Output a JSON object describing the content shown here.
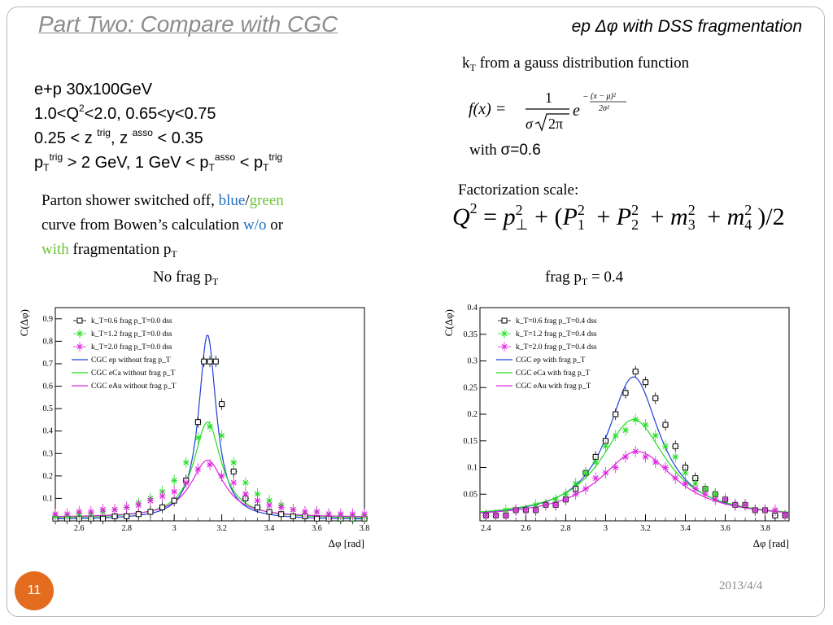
{
  "slide": {
    "title": "Part Two: Compare with CGC",
    "subtitle_pre": "ep ",
    "subtitle_sym": "Δφ",
    "subtitle_post": " with DSS fragmentation",
    "page_number": "11",
    "date": "2013/4/4"
  },
  "params": {
    "line1": "e+p 30x100GeV",
    "line2_a": "1.0<Q",
    "line2_sup": "2",
    "line2_b": "<2.0,  0.65<y<0.75",
    "line3_a": "0.25 < z ",
    "line3_sup1": "trig",
    "line3_b": ", z ",
    "line3_sup2": "asso",
    "line3_c": " < 0.35",
    "line4_p1": "p",
    "line4_sub1": "T",
    "line4_sup1": "trig",
    "line4_b": " > 2 GeV, 1 GeV < p",
    "line4_sub2": "T",
    "line4_sup2": "asso",
    "line4_c": " < p",
    "line4_sub3": "T",
    "line4_sup3": "trig"
  },
  "note": {
    "p1": "Parton shower switched off, ",
    "blue": "blue",
    "slash": "/",
    "green": "green",
    "p2": "curve from Bowen’s calculation ",
    "wo": "w/o",
    "or": "  or",
    "with": "with",
    "p3": " fragmentation p",
    "sub": "T"
  },
  "kt_note": {
    "pre": "k",
    "sub": "T",
    "post": " from a gauss distribution function"
  },
  "sigma_note": {
    "with": "with ",
    "value": "σ=0.6"
  },
  "factorization": {
    "label": "Factorization scale:"
  },
  "captions": {
    "left_pre": "No frag p",
    "left_sub": "T",
    "right_pre": "frag p",
    "right_sub": "T",
    "right_post": " = 0.4"
  },
  "colors": {
    "title_gray": "#8c8c8c",
    "blue": "#1f6fbf",
    "green": "#6ec33b",
    "pagenum_orange": "#e36c1e",
    "series_ep": "#1f3fd6",
    "series_eca": "#22dd22",
    "series_eau": "#e020e0"
  },
  "chart_data": [
    {
      "type": "line",
      "ylabel": "C(Δφ)",
      "xlabel": "Δφ [rad]",
      "xlim": [
        2.5,
        3.8
      ],
      "ylim": [
        0,
        0.95
      ],
      "xticks": [
        "2.6",
        "2.8",
        "3",
        "3.2",
        "3.4",
        "3.6",
        "3.8"
      ],
      "yticks": [
        "0.1",
        "0.2",
        "0.3",
        "0.4",
        "0.5",
        "0.6",
        "0.7",
        "0.8",
        "0.9"
      ],
      "legend_position": "top-left",
      "markers": [
        {
          "name": "k_T=0.6 frag p_T=0.0 dss",
          "marker": "square",
          "color": "#000000",
          "x": [
            2.5,
            2.55,
            2.6,
            2.65,
            2.7,
            2.75,
            2.8,
            2.85,
            2.9,
            2.95,
            3.0,
            3.05,
            3.1,
            3.125,
            3.15,
            3.175,
            3.2,
            3.25,
            3.3,
            3.35,
            3.4,
            3.45,
            3.5,
            3.55,
            3.6,
            3.65,
            3.7,
            3.75,
            3.8
          ],
          "y": [
            0.01,
            0.01,
            0.01,
            0.01,
            0.01,
            0.02,
            0.02,
            0.03,
            0.04,
            0.06,
            0.09,
            0.18,
            0.44,
            0.71,
            0.71,
            0.71,
            0.52,
            0.22,
            0.1,
            0.06,
            0.04,
            0.03,
            0.02,
            0.02,
            0.01,
            0.01,
            0.01,
            0.01,
            0.01
          ]
        },
        {
          "name": "k_T=1.2 frag p_T=0.0 dss",
          "marker": "cross",
          "color": "#22dd22",
          "x": [
            2.5,
            2.55,
            2.6,
            2.65,
            2.7,
            2.75,
            2.8,
            2.85,
            2.9,
            2.95,
            3.0,
            3.05,
            3.1,
            3.15,
            3.2,
            3.25,
            3.3,
            3.35,
            3.4,
            3.45,
            3.5,
            3.55,
            3.6,
            3.65,
            3.7,
            3.75,
            3.8
          ],
          "y": [
            0.02,
            0.02,
            0.03,
            0.03,
            0.04,
            0.05,
            0.06,
            0.08,
            0.1,
            0.13,
            0.18,
            0.26,
            0.37,
            0.42,
            0.38,
            0.26,
            0.17,
            0.12,
            0.09,
            0.07,
            0.05,
            0.04,
            0.04,
            0.03,
            0.02,
            0.02,
            0.02
          ]
        },
        {
          "name": "k_T=2.0 frag p_T=0.0 dss",
          "marker": "cross",
          "color": "#e020e0",
          "x": [
            2.5,
            2.55,
            2.6,
            2.65,
            2.7,
            2.75,
            2.8,
            2.85,
            2.9,
            2.95,
            3.0,
            3.05,
            3.1,
            3.15,
            3.2,
            3.25,
            3.3,
            3.35,
            3.4,
            3.45,
            3.5,
            3.55,
            3.6,
            3.65,
            3.7,
            3.75,
            3.8
          ],
          "y": [
            0.03,
            0.03,
            0.04,
            0.04,
            0.05,
            0.05,
            0.06,
            0.07,
            0.09,
            0.11,
            0.13,
            0.17,
            0.23,
            0.25,
            0.2,
            0.17,
            0.12,
            0.09,
            0.07,
            0.06,
            0.05,
            0.04,
            0.04,
            0.03,
            0.03,
            0.03,
            0.03
          ]
        }
      ],
      "series": [
        {
          "name": "CGC ep without frag p_T",
          "color": "#1f3fd6",
          "peak": 0.83,
          "center": 3.14,
          "width": 0.045,
          "base": 0.005
        },
        {
          "name": "CGC eCa without frag p_T",
          "color": "#22dd22",
          "peak": 0.44,
          "center": 3.14,
          "width": 0.07,
          "base": 0.01
        },
        {
          "name": "CGC eAu without frag p_T",
          "color": "#e020e0",
          "peak": 0.27,
          "center": 3.14,
          "width": 0.085,
          "base": 0.015
        }
      ]
    },
    {
      "type": "line",
      "ylabel": "C(Δφ)",
      "xlabel": "Δφ [rad]",
      "xlim": [
        2.37,
        3.92
      ],
      "ylim": [
        0,
        0.4
      ],
      "xticks": [
        "2.4",
        "2.6",
        "2.8",
        "3",
        "3.2",
        "3.4",
        "3.6",
        "3.8"
      ],
      "yticks": [
        "0.05",
        "0.1",
        "0.15",
        "0.2",
        "0.25",
        "0.3",
        "0.35",
        "0.4"
      ],
      "legend_position": "top-left",
      "markers": [
        {
          "name": "k_T=0.6 frag p_T=0.4 dss",
          "marker": "square",
          "color": "#000000",
          "x": [
            2.4,
            2.45,
            2.5,
            2.55,
            2.6,
            2.65,
            2.7,
            2.75,
            2.8,
            2.85,
            2.9,
            2.95,
            3.0,
            3.05,
            3.1,
            3.15,
            3.2,
            3.25,
            3.3,
            3.35,
            3.4,
            3.45,
            3.5,
            3.55,
            3.6,
            3.65,
            3.7,
            3.75,
            3.8,
            3.85,
            3.9
          ],
          "y": [
            0.01,
            0.01,
            0.01,
            0.02,
            0.02,
            0.02,
            0.03,
            0.03,
            0.04,
            0.06,
            0.09,
            0.12,
            0.15,
            0.2,
            0.24,
            0.28,
            0.26,
            0.23,
            0.18,
            0.14,
            0.1,
            0.08,
            0.06,
            0.05,
            0.04,
            0.03,
            0.03,
            0.02,
            0.02,
            0.01,
            0.01
          ]
        },
        {
          "name": "k_T=1.2 frag p_T=0.4 dss",
          "marker": "cross",
          "color": "#22dd22",
          "x": [
            2.4,
            2.45,
            2.5,
            2.55,
            2.6,
            2.65,
            2.7,
            2.75,
            2.8,
            2.85,
            2.9,
            2.95,
            3.0,
            3.05,
            3.1,
            3.15,
            3.2,
            3.25,
            3.3,
            3.35,
            3.4,
            3.45,
            3.5,
            3.55,
            3.6,
            3.65,
            3.7,
            3.75,
            3.8,
            3.85,
            3.9
          ],
          "y": [
            0.01,
            0.01,
            0.02,
            0.02,
            0.02,
            0.03,
            0.03,
            0.04,
            0.05,
            0.07,
            0.09,
            0.11,
            0.14,
            0.16,
            0.17,
            0.19,
            0.18,
            0.16,
            0.14,
            0.12,
            0.09,
            0.07,
            0.06,
            0.05,
            0.04,
            0.03,
            0.03,
            0.02,
            0.02,
            0.02,
            0.01
          ]
        },
        {
          "name": "k_T=2.0 frag p_T=0.4 dss",
          "marker": "cross",
          "color": "#e020e0",
          "x": [
            2.4,
            2.45,
            2.5,
            2.55,
            2.6,
            2.65,
            2.7,
            2.75,
            2.8,
            2.85,
            2.9,
            2.95,
            3.0,
            3.05,
            3.1,
            3.15,
            3.2,
            3.25,
            3.3,
            3.35,
            3.4,
            3.45,
            3.5,
            3.55,
            3.6,
            3.65,
            3.7,
            3.75,
            3.8,
            3.85,
            3.9
          ],
          "y": [
            0.01,
            0.01,
            0.01,
            0.02,
            0.02,
            0.02,
            0.03,
            0.03,
            0.04,
            0.05,
            0.06,
            0.08,
            0.09,
            0.1,
            0.12,
            0.13,
            0.12,
            0.11,
            0.1,
            0.08,
            0.07,
            0.06,
            0.05,
            0.04,
            0.04,
            0.03,
            0.03,
            0.02,
            0.02,
            0.02,
            0.01
          ]
        }
      ],
      "series": [
        {
          "name": "CGC ep with frag p_T",
          "color": "#1f3fd6",
          "peak": 0.27,
          "center": 3.14,
          "width": 0.16,
          "base": 0.005
        },
        {
          "name": "CGC eCa with frag p_T",
          "color": "#22dd22",
          "peak": 0.19,
          "center": 3.14,
          "width": 0.2,
          "base": 0.005
        },
        {
          "name": "CGC eAu with frag p_T",
          "color": "#e020e0",
          "peak": 0.13,
          "center": 3.16,
          "width": 0.23,
          "base": 0.005
        }
      ]
    }
  ]
}
